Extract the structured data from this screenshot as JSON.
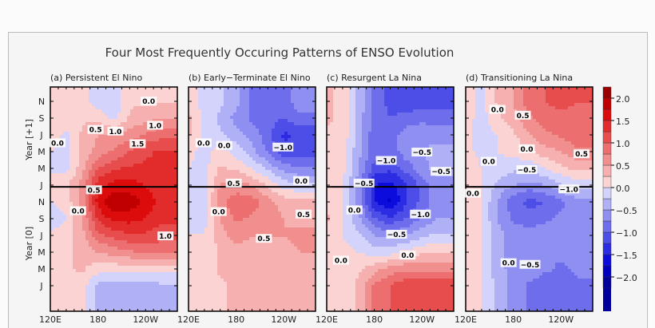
{
  "chart_data": {
    "type": "heatmap",
    "title": "Four Most Frequently Occuring Patterns of ENSO Evolution",
    "x_ticks": [
      "120E",
      "180",
      "120W"
    ],
    "x_tick_values": [
      120,
      180,
      240
    ],
    "y_labels": {
      "upper": "Year [+1]",
      "lower": "Year [0]"
    },
    "y_ticks": [
      "J",
      "M",
      "M",
      "J",
      "S",
      "N",
      "J",
      "M",
      "M",
      "J",
      "S",
      "N"
    ],
    "y_tick_values": [
      0,
      2,
      4,
      6,
      8,
      10,
      12,
      14,
      16,
      18,
      20,
      22
    ],
    "year_boundary": 11.8,
    "lon_range": [
      120,
      280
    ],
    "colorbar": {
      "ticks": [
        "2.0",
        "1.5",
        "1.0",
        "0.5",
        "0.0",
        "-0.5",
        "-1.0",
        "-1.5",
        "-2.0"
      ],
      "tick_values": [
        2.0,
        1.5,
        1.0,
        0.5,
        0.0,
        -0.5,
        -1.0,
        -1.5,
        -2.0
      ],
      "step": 0.25,
      "range": [
        -2.25,
        2.25
      ],
      "positive_colors": [
        "#fbd3d3",
        "#f6b0b0",
        "#f18f8f",
        "#ec6e6e",
        "#e74d4d",
        "#e22c2c",
        "#dc0c0c",
        "#c00000",
        "#9a0000"
      ],
      "negative_colors": [
        "#d3d3fb",
        "#b0b0f6",
        "#8f8ff1",
        "#6e6eec",
        "#4d4de7",
        "#2c2ce2",
        "#0c0cdc",
        "#0000c0",
        "#00009a"
      ]
    },
    "grid_lon": [
      120,
      140,
      160,
      180,
      200,
      220,
      240,
      260
    ],
    "grid_time": [
      22,
      20,
      18,
      16,
      14,
      12,
      10,
      8,
      6,
      4,
      2,
      0
    ],
    "panels": [
      {
        "title": "(a) Persistent El Nino",
        "values": [
          [
            0.2,
            0.2,
            0.2,
            -0.2,
            -0.2,
            0.2,
            0.2,
            0.2
          ],
          [
            0.2,
            0.2,
            0.2,
            0.2,
            -0.1,
            0.3,
            0.4,
            0.5
          ],
          [
            0.2,
            -0.1,
            0.3,
            0.5,
            0.5,
            0.6,
            0.8,
            0.9
          ],
          [
            0.0,
            -0.1,
            0.3,
            0.6,
            0.8,
            1.0,
            1.2,
            1.3
          ],
          [
            0.0,
            -0.1,
            0.4,
            1.0,
            1.2,
            1.3,
            1.3,
            1.3
          ],
          [
            0.0,
            0.2,
            0.6,
            1.4,
            1.6,
            1.6,
            1.5,
            1.3
          ],
          [
            0.0,
            0.1,
            0.6,
            1.6,
            2.0,
            1.9,
            1.7,
            1.4
          ],
          [
            -0.2,
            0.0,
            0.5,
            1.3,
            1.6,
            1.6,
            1.5,
            1.3
          ],
          [
            0.1,
            0.1,
            0.4,
            0.9,
            1.1,
            1.2,
            1.2,
            1.1
          ],
          [
            0.1,
            0.2,
            0.3,
            0.5,
            0.6,
            0.7,
            0.8,
            0.8
          ],
          [
            0.1,
            0.2,
            0.3,
            0.1,
            0.1,
            0.1,
            0.1,
            0.1
          ],
          [
            0.1,
            0.2,
            0.1,
            -0.3,
            -0.4,
            -0.4,
            -0.4,
            -0.3
          ]
        ],
        "contour_labels": [
          {
            "text": "0.0",
            "lon": 244,
            "t": 22
          },
          {
            "text": "1.0",
            "lon": 252,
            "t": 19.1
          },
          {
            "text": "0.5",
            "lon": 177,
            "t": 18.6
          },
          {
            "text": "1.0",
            "lon": 202,
            "t": 18.4
          },
          {
            "text": "1.5",
            "lon": 230,
            "t": 16.9
          },
          {
            "text": "0.0",
            "lon": 129,
            "t": 17
          },
          {
            "text": "0.5",
            "lon": 175,
            "t": 11.4
          },
          {
            "text": "0.0",
            "lon": 155,
            "t": 8.9
          },
          {
            "text": "1.0",
            "lon": 265,
            "t": 5.9
          }
        ]
      },
      {
        "title": "(b) Early−Terminate El Nino",
        "values": [
          [
            0.2,
            -0.1,
            -0.2,
            -0.4,
            -0.8,
            -0.9,
            -0.9,
            -0.6
          ],
          [
            0.3,
            -0.1,
            -0.3,
            -0.6,
            -0.8,
            -0.9,
            -1.0,
            -0.8
          ],
          [
            0.3,
            -0.1,
            -0.2,
            -0.4,
            -0.6,
            -0.9,
            -1.3,
            -1.2
          ],
          [
            0.1,
            -0.1,
            0.1,
            -0.1,
            -0.4,
            -0.8,
            -1.2,
            -1.2
          ],
          [
            0.0,
            -0.1,
            0.3,
            0.2,
            0.0,
            -0.3,
            -0.6,
            -0.7
          ],
          [
            0.0,
            -0.1,
            0.5,
            0.6,
            0.5,
            0.2,
            -0.1,
            -0.2
          ],
          [
            0.0,
            -0.1,
            0.7,
            0.9,
            0.9,
            0.6,
            0.4,
            0.3
          ],
          [
            -0.1,
            -0.1,
            0.5,
            0.8,
            0.7,
            0.6,
            0.5,
            0.4
          ],
          [
            0.0,
            0.0,
            0.4,
            0.6,
            0.5,
            0.5,
            0.5,
            0.6
          ],
          [
            0.1,
            0.0,
            0.3,
            0.4,
            0.4,
            0.4,
            0.4,
            0.5
          ],
          [
            0.1,
            0.1,
            0.3,
            0.4,
            0.4,
            0.4,
            0.4,
            0.4
          ],
          [
            0.1,
            0.1,
            0.2,
            0.3,
            0.3,
            0.3,
            0.3,
            0.3
          ]
        ],
        "contour_labels": [
          {
            "text": "0.0",
            "lon": 139,
            "t": 17
          },
          {
            "text": "0.0",
            "lon": 165,
            "t": 16.7
          },
          {
            "text": "−1.0",
            "lon": 239,
            "t": 16.5
          },
          {
            "text": "0.0",
            "lon": 262,
            "t": 12.5
          },
          {
            "text": "0.5",
            "lon": 177,
            "t": 12.2
          },
          {
            "text": "0.0",
            "lon": 158,
            "t": 8.8
          },
          {
            "text": "0.5",
            "lon": 265,
            "t": 8.5
          },
          {
            "text": "0.5",
            "lon": 215,
            "t": 5.6
          }
        ]
      },
      {
        "title": "(c) Resurgent La Nina",
        "values": [
          [
            0.3,
            0.2,
            -0.3,
            -0.8,
            -1.1,
            -1.2,
            -1.2,
            -1.1
          ],
          [
            0.3,
            0.2,
            -0.4,
            -0.8,
            -1.0,
            -0.9,
            -0.8,
            -0.9
          ],
          [
            0.2,
            0.2,
            -0.4,
            -0.9,
            -0.9,
            -0.6,
            -0.6,
            -0.6
          ],
          [
            0.2,
            0.1,
            -0.4,
            -0.9,
            -0.9,
            -0.6,
            -0.5,
            -0.4
          ],
          [
            0.2,
            0.1,
            -0.5,
            -1.1,
            -1.2,
            -0.9,
            -0.6,
            -0.4
          ],
          [
            0.2,
            0.0,
            -0.6,
            -1.5,
            -1.6,
            -1.3,
            -0.9,
            -0.6
          ],
          [
            0.2,
            0.0,
            -0.6,
            -1.5,
            -1.8,
            -1.3,
            -0.9,
            -0.6
          ],
          [
            0.3,
            0.0,
            -0.4,
            -1.0,
            -1.2,
            -1.0,
            -0.7,
            -0.5
          ],
          [
            0.2,
            0.0,
            -0.2,
            -0.5,
            -0.6,
            -0.5,
            -0.3,
            -0.2
          ],
          [
            0.1,
            0.1,
            0.0,
            -0.1,
            -0.1,
            0.1,
            0.2,
            0.2
          ],
          [
            0.1,
            0.1,
            0.2,
            0.4,
            0.6,
            0.7,
            0.7,
            0.7
          ],
          [
            0.1,
            0.1,
            0.3,
            0.8,
            1.0,
            1.2,
            1.2,
            1.2
          ]
        ],
        "contour_labels": [
          {
            "text": "−0.5",
            "lon": 240,
            "t": 15.9
          },
          {
            "text": "−1.0",
            "lon": 195,
            "t": 14.9
          },
          {
            "text": "−0.5",
            "lon": 264,
            "t": 13.6
          },
          {
            "text": "−0.5",
            "lon": 167,
            "t": 12.2
          },
          {
            "text": "0.0",
            "lon": 155,
            "t": 9
          },
          {
            "text": "−1.0",
            "lon": 238,
            "t": 8.5
          },
          {
            "text": "−0.5",
            "lon": 208,
            "t": 6.1
          },
          {
            "text": "0.0",
            "lon": 222,
            "t": 3.6
          },
          {
            "text": "0.0",
            "lon": 138,
            "t": 3
          }
        ]
      },
      {
        "title": "(d) Transitioning La Nina",
        "values": [
          [
            0.2,
            -0.1,
            0.3,
            0.5,
            0.9,
            1.0,
            1.1,
            1.0
          ],
          [
            0.1,
            -0.1,
            0.2,
            0.4,
            0.7,
            0.9,
            0.9,
            0.9
          ],
          [
            0.1,
            -0.1,
            0.0,
            0.2,
            0.5,
            0.7,
            0.8,
            0.9
          ],
          [
            0.1,
            -0.1,
            0.0,
            0.1,
            0.2,
            0.4,
            0.5,
            0.7
          ],
          [
            0.2,
            0.0,
            -0.1,
            -0.2,
            -0.2,
            0.0,
            0.2,
            0.3
          ],
          [
            0.2,
            0.0,
            -0.3,
            -0.5,
            -0.6,
            -0.5,
            -0.3,
            -0.1
          ],
          [
            0.2,
            0.0,
            -0.5,
            -0.9,
            -1.1,
            -1.0,
            -0.8,
            -0.6
          ],
          [
            0.2,
            0.0,
            -0.5,
            -0.8,
            -0.9,
            -0.8,
            -0.7,
            -0.7
          ],
          [
            0.2,
            0.0,
            -0.4,
            -0.6,
            -0.6,
            -0.6,
            -0.6,
            -0.6
          ],
          [
            0.2,
            0.0,
            -0.4,
            -0.6,
            -0.7,
            -0.7,
            -0.7,
            -0.6
          ],
          [
            0.2,
            0.0,
            -0.4,
            -0.6,
            -0.6,
            -0.7,
            -0.8,
            -0.7
          ],
          [
            0.2,
            0.0,
            -0.3,
            -0.6,
            -0.8,
            -0.9,
            -0.9,
            -0.8
          ]
        ],
        "contour_labels": [
          {
            "text": "0.0",
            "lon": 160,
            "t": 21
          },
          {
            "text": "0.5",
            "lon": 192,
            "t": 20.3
          },
          {
            "text": "0.0",
            "lon": 197,
            "t": 16.3
          },
          {
            "text": "0.5",
            "lon": 266,
            "t": 15.7
          },
          {
            "text": "0.0",
            "lon": 149,
            "t": 14.8
          },
          {
            "text": "−0.5",
            "lon": 197,
            "t": 13.8
          },
          {
            "text": "−1.0",
            "lon": 250,
            "t": 11.5
          },
          {
            "text": "0.0",
            "lon": 129,
            "t": 11
          },
          {
            "text": "0.0",
            "lon": 174,
            "t": 2.7
          },
          {
            "text": "−0.5",
            "lon": 201,
            "t": 2.5
          }
        ]
      }
    ]
  }
}
